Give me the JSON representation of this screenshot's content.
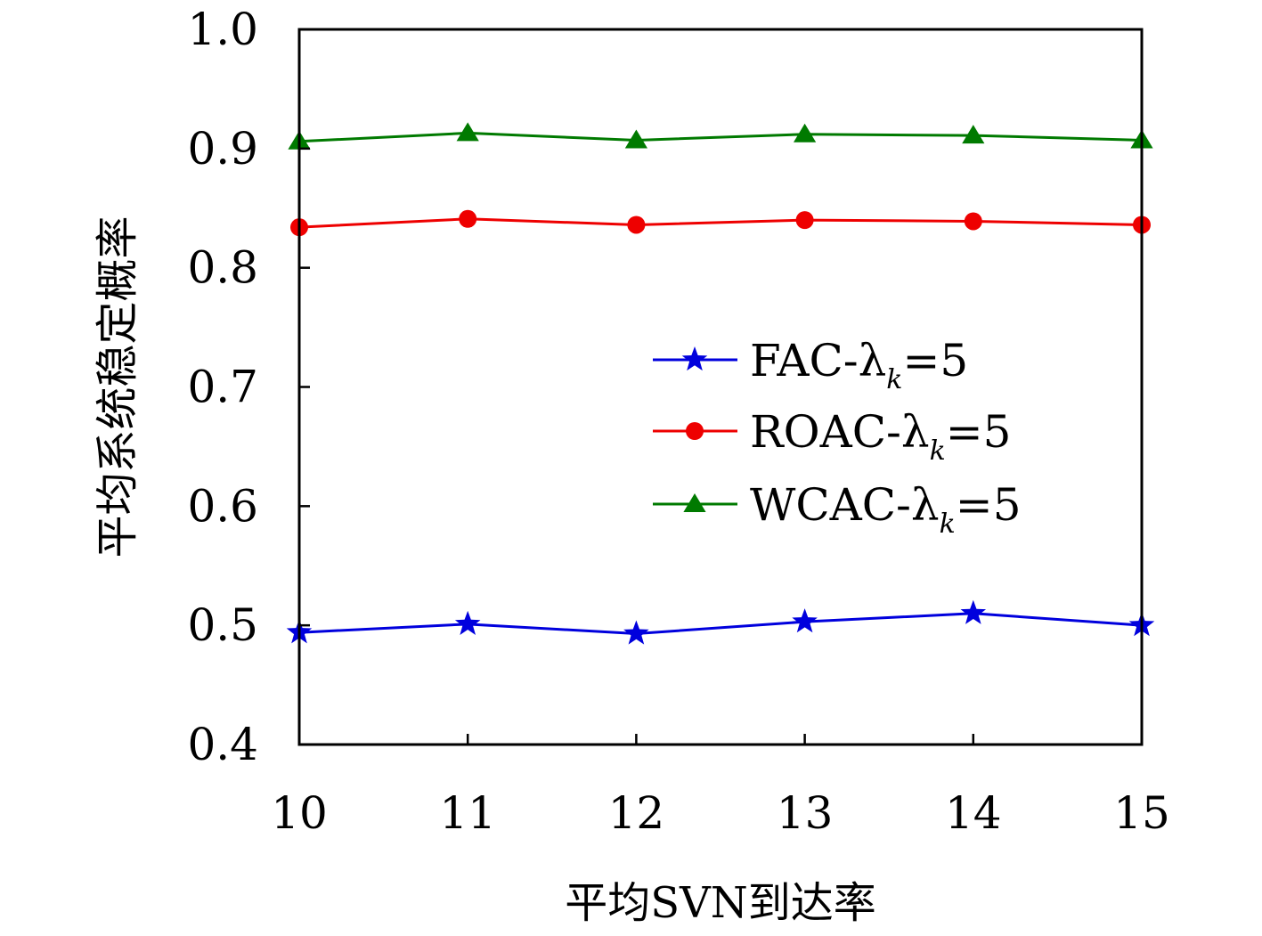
{
  "chart_data": {
    "type": "line",
    "title": "",
    "xlabel": "平均SVN到达率",
    "ylabel": "平均系统稳定概率",
    "x": [
      10,
      11,
      12,
      13,
      14,
      15
    ],
    "xticks": [
      "10",
      "11",
      "12",
      "13",
      "14",
      "15"
    ],
    "xlim": [
      10,
      15
    ],
    "ylim": [
      0.4,
      1.0
    ],
    "yticks": [
      "0.4",
      "0.5",
      "0.6",
      "0.7",
      "0.8",
      "0.9",
      "1.0"
    ],
    "grid": false,
    "legend_position": "center-right",
    "series": [
      {
        "name": "FAC-λk=5",
        "legend_prefix": "FAC-λ",
        "legend_sub": "k",
        "legend_suffix": "=5",
        "color": "#0000dd",
        "marker": "star",
        "values": [
          0.494,
          0.501,
          0.493,
          0.503,
          0.51,
          0.5
        ]
      },
      {
        "name": "ROAC-λk=5",
        "legend_prefix": "ROAC-λ",
        "legend_sub": "k",
        "legend_suffix": "=5",
        "color": "#ee0000",
        "marker": "circle",
        "values": [
          0.834,
          0.841,
          0.836,
          0.84,
          0.839,
          0.836
        ]
      },
      {
        "name": "WCAC-λk=5",
        "legend_prefix": "WCAC-λ",
        "legend_sub": "k",
        "legend_suffix": "=5",
        "color": "#007a00",
        "marker": "triangle",
        "values": [
          0.906,
          0.913,
          0.907,
          0.912,
          0.911,
          0.907
        ]
      }
    ]
  }
}
